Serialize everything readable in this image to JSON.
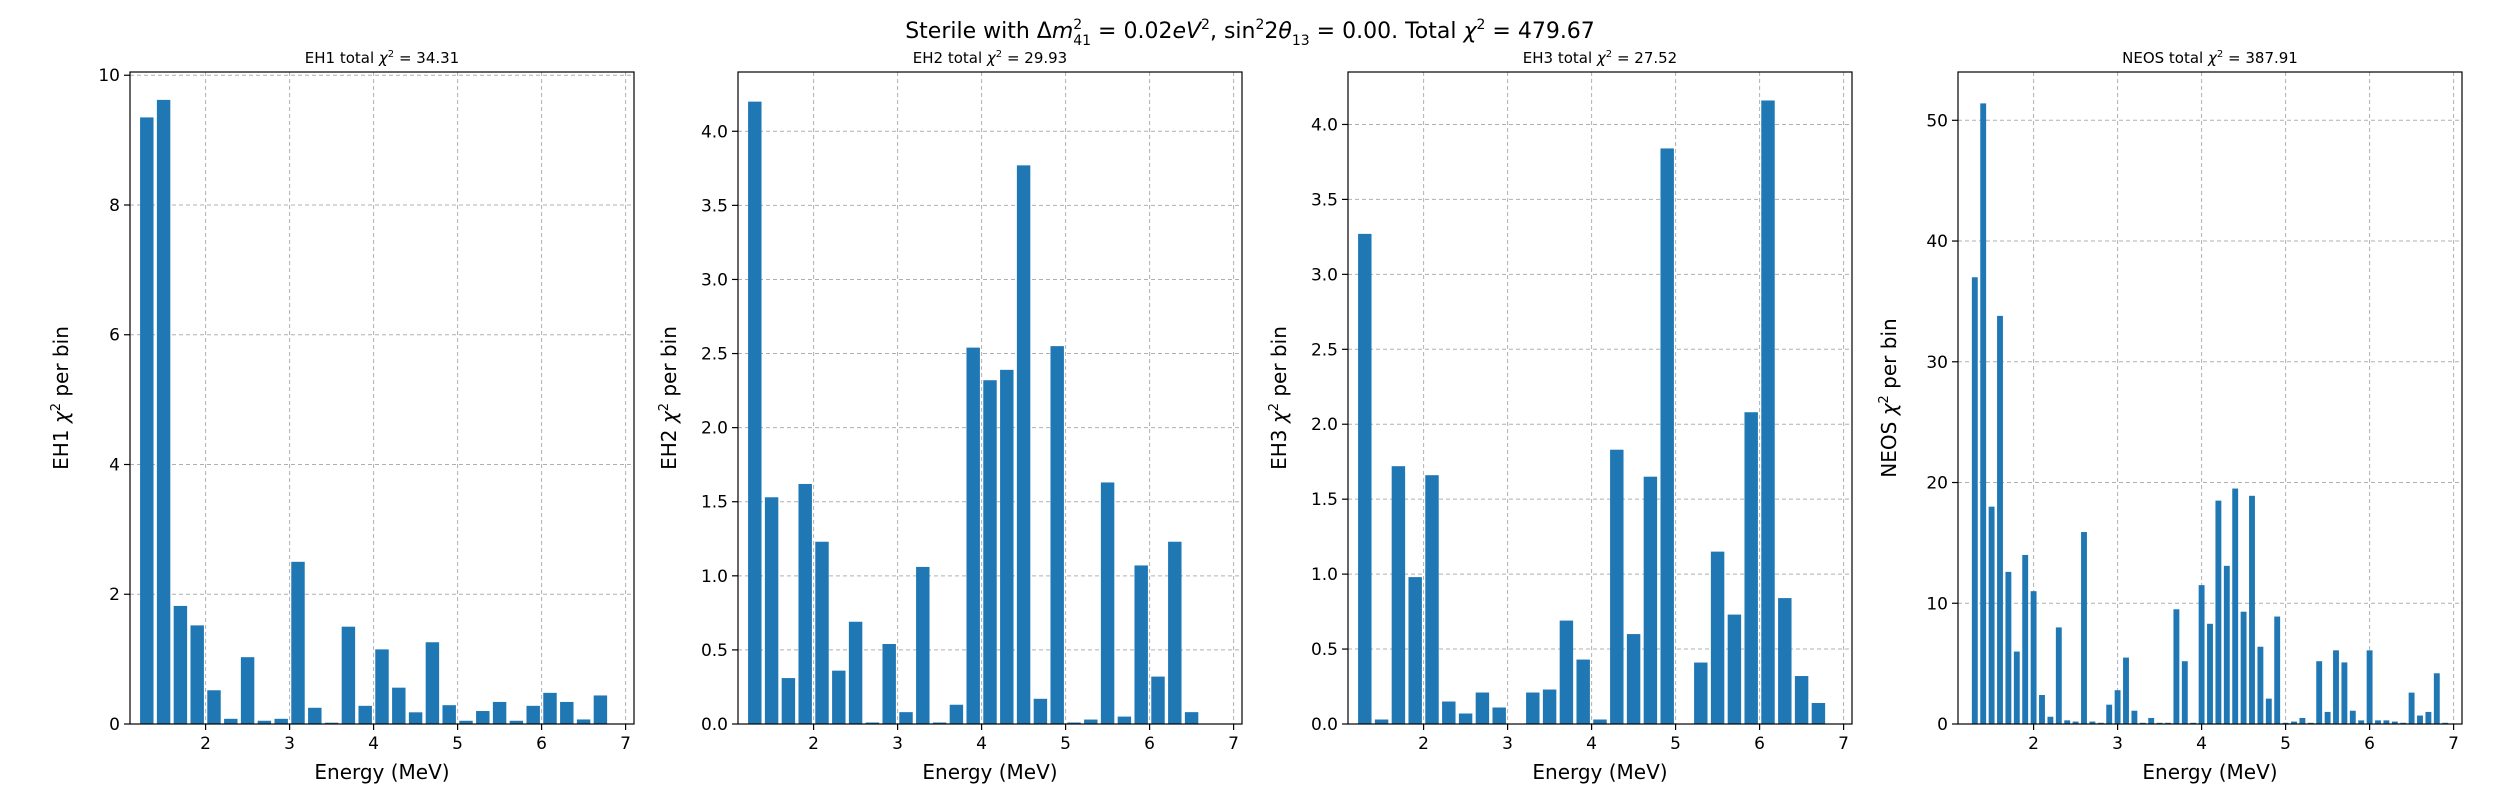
{
  "figure": {
    "suptitle_parts": [
      "Sterile with ",
      "Δ",
      "m",
      "2",
      "41",
      " = 0.02",
      "eV",
      "2",
      ", sin",
      "2",
      "2",
      "θ",
      "13",
      " = 0.00. Total ",
      "χ",
      "2",
      " = 479.67"
    ]
  },
  "colors": {
    "bar": "#1f77b4",
    "grid": "#b0b0b0"
  },
  "chart_data": [
    {
      "type": "bar",
      "title_prefix": "EH1 total ",
      "title_sym": "χ",
      "title_sup": "2",
      "title_value": " = 34.31",
      "ylabel_prefix": "EH1 ",
      "ylabel_sym": "χ",
      "ylabel_sup": "2",
      "ylabel_suffix": " per bin",
      "xlabel": "Energy (MeV)",
      "xlim": [
        1.1,
        7.1
      ],
      "ylim": [
        0,
        10.05
      ],
      "xticks": [
        2,
        3,
        4,
        5,
        6,
        7
      ],
      "yticks": [
        0,
        2,
        4,
        6,
        8,
        10
      ],
      "ytick_labels": [
        "0",
        "2",
        "4",
        "6",
        "8",
        "10"
      ],
      "bar_width": 0.16,
      "x": [
        1.3,
        1.5,
        1.7,
        1.9,
        2.1,
        2.3,
        2.5,
        2.7,
        2.9,
        3.1,
        3.3,
        3.5,
        3.7,
        3.9,
        4.1,
        4.3,
        4.5,
        4.7,
        4.9,
        5.1,
        5.3,
        5.5,
        5.7,
        5.9,
        6.1,
        6.3,
        6.5,
        6.7
      ],
      "values": [
        9.35,
        9.62,
        1.82,
        1.52,
        0.52,
        0.08,
        1.03,
        0.05,
        0.08,
        2.5,
        0.25,
        0.02,
        1.5,
        0.28,
        1.15,
        0.56,
        0.18,
        1.26,
        0.29,
        0.05,
        0.2,
        0.34,
        0.05,
        0.28,
        0.48,
        0.34,
        0.07,
        0.44
      ]
    },
    {
      "type": "bar",
      "title_prefix": "EH2 total ",
      "title_sym": "χ",
      "title_sup": "2",
      "title_value": " = 29.93",
      "ylabel_prefix": "EH2 ",
      "ylabel_sym": "χ",
      "ylabel_sup": "2",
      "ylabel_suffix": " per bin",
      "xlabel": "Energy (MeV)",
      "xlim": [
        1.1,
        7.1
      ],
      "ylim": [
        0,
        4.4
      ],
      "xticks": [
        2,
        3,
        4,
        5,
        6,
        7
      ],
      "yticks": [
        0,
        0.5,
        1,
        1.5,
        2,
        2.5,
        3,
        3.5,
        4
      ],
      "ytick_labels": [
        "0.0",
        "0.5",
        "1.0",
        "1.5",
        "2.0",
        "2.5",
        "3.0",
        "3.5",
        "4.0"
      ],
      "bar_width": 0.16,
      "x": [
        1.3,
        1.5,
        1.7,
        1.9,
        2.1,
        2.3,
        2.5,
        2.7,
        2.9,
        3.1,
        3.3,
        3.5,
        3.7,
        3.9,
        4.1,
        4.3,
        4.5,
        4.7,
        4.9,
        5.1,
        5.3,
        5.5,
        5.7,
        5.9,
        6.1,
        6.3,
        6.5,
        6.7
      ],
      "values": [
        4.2,
        1.53,
        0.31,
        1.62,
        1.23,
        0.36,
        0.69,
        0.01,
        0.54,
        0.08,
        1.06,
        0.01,
        0.13,
        2.54,
        2.32,
        2.39,
        3.77,
        0.17,
        2.55,
        0.01,
        0.03,
        1.63,
        0.05,
        1.07,
        0.32,
        1.23,
        0.08,
        0.0
      ]
    },
    {
      "type": "bar",
      "title_prefix": "EH3 total ",
      "title_sym": "χ",
      "title_sup": "2",
      "title_value": " = 27.52",
      "ylabel_prefix": "EH3 ",
      "ylabel_sym": "χ",
      "ylabel_sup": "2",
      "ylabel_suffix": " per bin",
      "xlabel": "Energy (MeV)",
      "xlim": [
        1.1,
        7.1
      ],
      "ylim": [
        0,
        4.35
      ],
      "xticks": [
        2,
        3,
        4,
        5,
        6,
        7
      ],
      "yticks": [
        0,
        0.5,
        1,
        1.5,
        2,
        2.5,
        3,
        3.5,
        4
      ],
      "ytick_labels": [
        "0.0",
        "0.5",
        "1.0",
        "1.5",
        "2.0",
        "2.5",
        "3.0",
        "3.5",
        "4.0"
      ],
      "bar_width": 0.16,
      "x": [
        1.3,
        1.5,
        1.7,
        1.9,
        2.1,
        2.3,
        2.5,
        2.7,
        2.9,
        3.1,
        3.3,
        3.5,
        3.7,
        3.9,
        4.1,
        4.3,
        4.5,
        4.7,
        4.9,
        5.1,
        5.3,
        5.5,
        5.7,
        5.9,
        6.1,
        6.3,
        6.5,
        6.7
      ],
      "values": [
        3.27,
        0.03,
        1.72,
        0.98,
        1.66,
        0.15,
        0.07,
        0.21,
        0.11,
        0.0,
        0.21,
        0.23,
        0.69,
        0.43,
        0.03,
        1.83,
        0.6,
        1.65,
        3.84,
        0.0,
        0.41,
        1.15,
        0.73,
        2.08,
        4.16,
        0.84,
        0.32,
        0.14
      ]
    },
    {
      "type": "bar",
      "title_prefix": "NEOS total ",
      "title_sym": "χ",
      "title_sup": "2",
      "title_value": " = 387.91",
      "ylabel_prefix": "NEOS ",
      "ylabel_sym": "χ",
      "ylabel_sup": "2",
      "ylabel_suffix": " per bin",
      "xlabel": "Energy (MeV)",
      "xlim": [
        1.1,
        7.1
      ],
      "ylim": [
        0,
        54
      ],
      "xticks": [
        2,
        3,
        4,
        5,
        6,
        7
      ],
      "yticks": [
        0,
        10,
        20,
        30,
        40,
        50
      ],
      "ytick_labels": [
        "0",
        "10",
        "20",
        "30",
        "40",
        "50"
      ],
      "bar_width": 0.07,
      "x": [
        1.3,
        1.4,
        1.5,
        1.6,
        1.7,
        1.8,
        1.9,
        2.0,
        2.1,
        2.2,
        2.3,
        2.4,
        2.5,
        2.6,
        2.7,
        2.8,
        2.9,
        3.0,
        3.1,
        3.2,
        3.3,
        3.4,
        3.5,
        3.6,
        3.7,
        3.8,
        3.9,
        4.0,
        4.1,
        4.2,
        4.3,
        4.4,
        4.5,
        4.6,
        4.7,
        4.8,
        4.9,
        5.0,
        5.1,
        5.2,
        5.3,
        5.4,
        5.5,
        5.6,
        5.7,
        5.8,
        5.9,
        6.0,
        6.1,
        6.2,
        6.3,
        6.4,
        6.5,
        6.6,
        6.7,
        6.8,
        6.9
      ],
      "values": [
        37,
        51.4,
        18,
        33.8,
        12.6,
        6,
        14,
        11,
        2.4,
        0.6,
        8,
        0.3,
        0.2,
        15.9,
        0.2,
        0.1,
        1.6,
        2.8,
        5.5,
        1.1,
        0.1,
        0.5,
        0.1,
        0.1,
        9.5,
        5.2,
        0.1,
        11.5,
        8.3,
        18.5,
        13.1,
        19.5,
        9.3,
        18.9,
        6.4,
        2.1,
        8.9,
        0.1,
        0.2,
        0.5,
        0.1,
        5.2,
        1.0,
        6.1,
        5.1,
        1.1,
        0.3,
        6.1,
        0.3,
        0.3,
        0.2,
        0.1,
        2.6,
        0.7,
        1.0,
        4.2,
        0.1
      ]
    }
  ]
}
